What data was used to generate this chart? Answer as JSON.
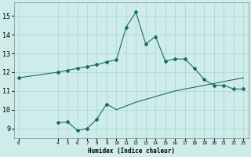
{
  "xlabel": "Humidex (Indice chaleur)",
  "background_color": "#ceecea",
  "grid_color": "#aad4d0",
  "line_color": "#1a6b6b",
  "line1_x": [
    0,
    4,
    5,
    6,
    7,
    8,
    9,
    10,
    11,
    12,
    13,
    14,
    15,
    16,
    17,
    18,
    19,
    20,
    21,
    22,
    23
  ],
  "line1_y": [
    11.7,
    12.0,
    12.1,
    12.2,
    12.3,
    12.4,
    12.55,
    12.65,
    14.4,
    15.2,
    13.5,
    13.9,
    12.6,
    12.7,
    12.7,
    12.2,
    11.6,
    11.3,
    11.3,
    11.1,
    11.1
  ],
  "line2_x": [
    4,
    5,
    6,
    7,
    8,
    9,
    10,
    11,
    12,
    13,
    14,
    15,
    16,
    17,
    18,
    19,
    20,
    21,
    22,
    23
  ],
  "line2_y": [
    9.3,
    9.35,
    8.9,
    9.0,
    9.5,
    10.3,
    10.0,
    10.2,
    10.4,
    10.55,
    10.7,
    10.85,
    11.0,
    11.1,
    11.2,
    11.3,
    11.4,
    11.5,
    11.6,
    11.7
  ],
  "line2_markers_x": [
    4,
    5,
    6,
    7,
    8,
    9
  ],
  "line2_markers_y": [
    9.3,
    9.35,
    8.9,
    9.0,
    9.5,
    10.3
  ],
  "ylim": [
    8.5,
    15.7
  ],
  "xlim": [
    -0.5,
    23.5
  ],
  "yticks": [
    9,
    10,
    11,
    12,
    13,
    14,
    15
  ],
  "xticks": [
    0,
    4,
    5,
    6,
    7,
    8,
    9,
    10,
    11,
    12,
    13,
    14,
    15,
    16,
    17,
    18,
    19,
    20,
    21,
    22,
    23
  ],
  "xlabel_fontsize": 5.5,
  "ytick_fontsize": 6,
  "xtick_fontsize": 4.2
}
